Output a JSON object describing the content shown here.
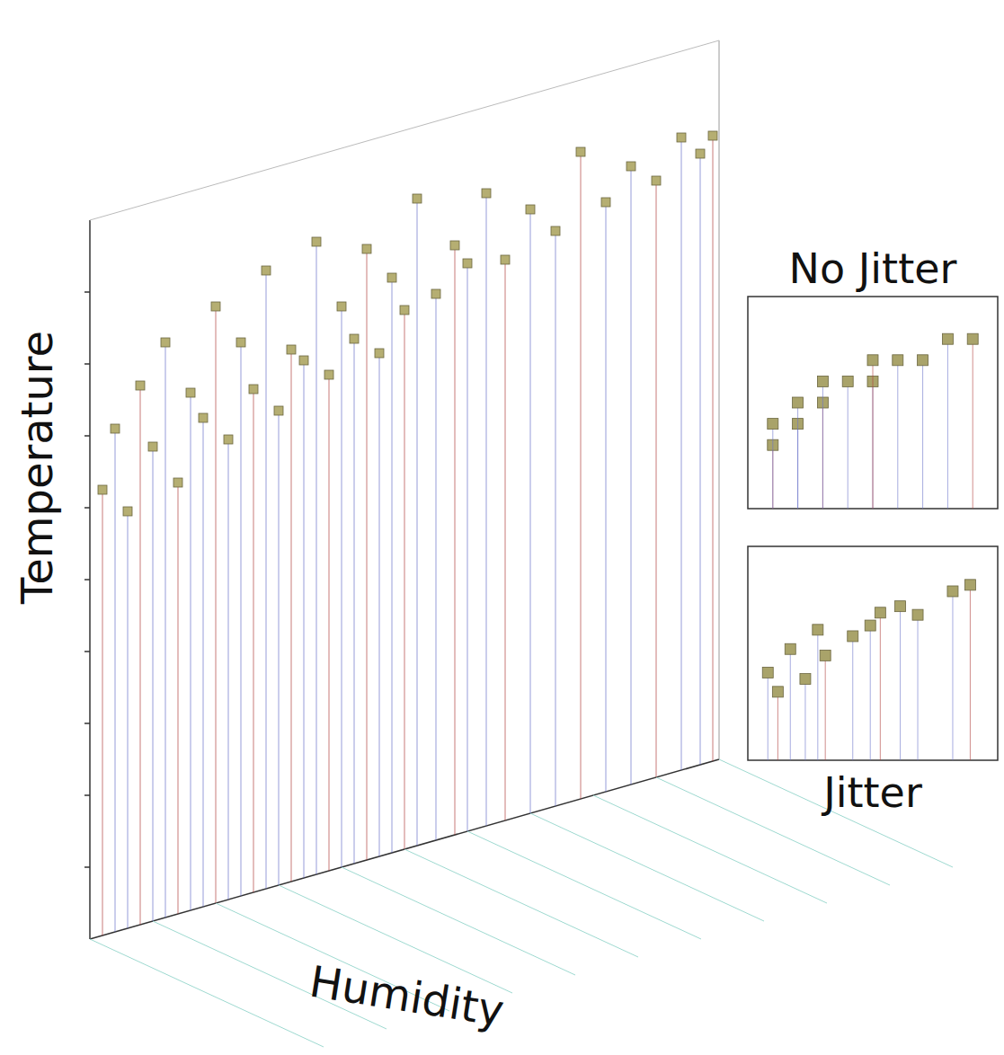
{
  "chart_data": [
    {
      "type": "scatter",
      "x_label": "Humidity",
      "y_label": "Temperature",
      "xlim": [
        0,
        100
      ],
      "ylim": [
        0,
        100
      ],
      "yticks": [
        10,
        20,
        30,
        40,
        50,
        60,
        70,
        80,
        90
      ],
      "tick_labels": false,
      "color": "#b5ae72",
      "marker": "square",
      "x": [
        2,
        4,
        6,
        8,
        10,
        12,
        14,
        16,
        18,
        20,
        22,
        24,
        26,
        28,
        30,
        32,
        34,
        36,
        38,
        40,
        42,
        44,
        46,
        48,
        50,
        52,
        55,
        58,
        60,
        63,
        66,
        70,
        74,
        78,
        82,
        86,
        90,
        94,
        97,
        99
      ],
      "values": [
        62,
        70,
        58,
        75,
        66,
        80,
        60,
        72,
        68,
        83,
        64,
        77,
        70,
        86,
        66,
        74,
        72,
        88,
        69,
        78,
        73,
        85,
        70,
        80,
        75,
        90,
        76,
        82,
        79,
        88,
        78,
        84,
        80,
        90,
        82,
        86,
        83,
        88,
        85,
        87
      ]
    },
    {
      "type": "scatter",
      "title": "No Jitter",
      "xlim": [
        0,
        10
      ],
      "ylim": [
        0,
        10
      ],
      "tick_labels": false,
      "color": "#a9a36a",
      "marker": "square",
      "x": [
        1,
        1,
        2,
        2,
        3,
        3,
        4,
        5,
        5,
        6,
        7,
        8,
        9
      ],
      "values": [
        3,
        4,
        4,
        5,
        5,
        6,
        6,
        6,
        7,
        7,
        7,
        8,
        8
      ]
    },
    {
      "type": "scatter",
      "title": "Jitter",
      "xlim": [
        0,
        10
      ],
      "ylim": [
        0,
        10
      ],
      "tick_labels": false,
      "color": "#a9a36a",
      "marker": "square",
      "x": [
        1.2,
        0.8,
        2.3,
        1.7,
        3.1,
        2.8,
        4.2,
        4.9,
        5.3,
        6.1,
        6.8,
        8.2,
        8.9
      ],
      "values": [
        3.2,
        4.1,
        3.8,
        5.2,
        4.9,
        6.1,
        5.8,
        6.3,
        6.9,
        7.2,
        6.8,
        7.9,
        8.2
      ]
    }
  ]
}
